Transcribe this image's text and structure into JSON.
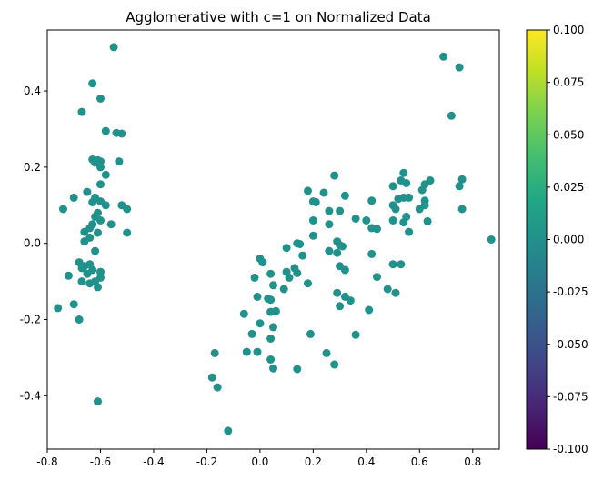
{
  "chart_data": {
    "type": "scatter",
    "title": "Agglomerative with c=1 on Normalized Data",
    "xlabel": "",
    "ylabel": "",
    "xlim": [
      -0.8,
      0.9
    ],
    "ylim": [
      -0.54,
      0.56
    ],
    "x_ticks": [
      "-0.8",
      "-0.6",
      "-0.4",
      "-0.2",
      "0.0",
      "0.2",
      "0.4",
      "0.6",
      "0.8"
    ],
    "y_ticks": [
      "-0.4",
      "-0.2",
      "0.0",
      "0.2",
      "0.4"
    ],
    "point_color": "#21918c",
    "grid": false,
    "colorbar": {
      "cmap": "viridis",
      "range": [
        -0.1,
        0.1
      ],
      "ticks": [
        "-0.100",
        "-0.075",
        "-0.050",
        "-0.025",
        "0.000",
        "0.025",
        "0.050",
        "0.075",
        "0.100"
      ]
    },
    "points": [
      [
        -0.55,
        0.515
      ],
      [
        -0.63,
        0.42
      ],
      [
        -0.6,
        0.38
      ],
      [
        -0.67,
        0.345
      ],
      [
        -0.58,
        0.295
      ],
      [
        -0.54,
        0.29
      ],
      [
        -0.52,
        0.288
      ],
      [
        -0.63,
        0.22
      ],
      [
        -0.61,
        0.218
      ],
      [
        -0.6,
        0.215
      ],
      [
        -0.62,
        0.212
      ],
      [
        -0.53,
        0.215
      ],
      [
        -0.6,
        0.2
      ],
      [
        -0.58,
        0.18
      ],
      [
        -0.6,
        0.155
      ],
      [
        -0.65,
        0.135
      ],
      [
        -0.7,
        0.12
      ],
      [
        -0.62,
        0.12
      ],
      [
        -0.6,
        0.11
      ],
      [
        -0.63,
        0.108
      ],
      [
        -0.58,
        0.1
      ],
      [
        -0.52,
        0.1
      ],
      [
        -0.5,
        0.09
      ],
      [
        -0.74,
        0.09
      ],
      [
        -0.61,
        0.08
      ],
      [
        -0.62,
        0.07
      ],
      [
        -0.6,
        0.06
      ],
      [
        -0.63,
        0.05
      ],
      [
        -0.56,
        0.05
      ],
      [
        -0.64,
        0.04
      ],
      [
        -0.66,
        0.03
      ],
      [
        -0.61,
        0.028
      ],
      [
        -0.5,
        0.028
      ],
      [
        -0.64,
        0.015
      ],
      [
        -0.66,
        0.005
      ],
      [
        -0.62,
        -0.02
      ],
      [
        -0.68,
        -0.05
      ],
      [
        -0.64,
        -0.055
      ],
      [
        -0.66,
        -0.06
      ],
      [
        -0.67,
        -0.065
      ],
      [
        -0.63,
        -0.07
      ],
      [
        -0.6,
        -0.075
      ],
      [
        -0.65,
        -0.08
      ],
      [
        -0.72,
        -0.085
      ],
      [
        -0.6,
        -0.09
      ],
      [
        -0.62,
        -0.1
      ],
      [
        -0.67,
        -0.1
      ],
      [
        -0.64,
        -0.105
      ],
      [
        -0.61,
        -0.115
      ],
      [
        -0.7,
        -0.16
      ],
      [
        -0.76,
        -0.17
      ],
      [
        -0.68,
        -0.2
      ],
      [
        -0.61,
        -0.415
      ],
      [
        0.69,
        0.49
      ],
      [
        0.75,
        0.462
      ],
      [
        0.72,
        0.335
      ],
      [
        0.54,
        0.185
      ],
      [
        0.28,
        0.178
      ],
      [
        0.53,
        0.165
      ],
      [
        0.64,
        0.165
      ],
      [
        0.5,
        0.15
      ],
      [
        0.62,
        0.155
      ],
      [
        0.76,
        0.168
      ],
      [
        0.55,
        0.158
      ],
      [
        0.61,
        0.14
      ],
      [
        0.75,
        0.15
      ],
      [
        0.18,
        0.138
      ],
      [
        0.24,
        0.133
      ],
      [
        0.32,
        0.125
      ],
      [
        0.54,
        0.12
      ],
      [
        0.56,
        0.12
      ],
      [
        0.52,
        0.117
      ],
      [
        0.42,
        0.112
      ],
      [
        0.62,
        0.112
      ],
      [
        0.2,
        0.11
      ],
      [
        0.21,
        0.108
      ],
      [
        0.5,
        0.1
      ],
      [
        0.62,
        0.1
      ],
      [
        0.6,
        0.09
      ],
      [
        0.51,
        0.09
      ],
      [
        0.76,
        0.09
      ],
      [
        0.26,
        0.085
      ],
      [
        0.3,
        0.085
      ],
      [
        0.55,
        0.07
      ],
      [
        0.36,
        0.065
      ],
      [
        0.4,
        0.06
      ],
      [
        0.5,
        0.06
      ],
      [
        0.2,
        0.06
      ],
      [
        0.63,
        0.058
      ],
      [
        0.54,
        0.055
      ],
      [
        0.26,
        0.05
      ],
      [
        0.42,
        0.04
      ],
      [
        0.44,
        0.038
      ],
      [
        0.56,
        0.03
      ],
      [
        0.2,
        0.02
      ],
      [
        0.87,
        0.01
      ],
      [
        0.29,
        0.005
      ],
      [
        0.14,
        0.0
      ],
      [
        0.15,
        -0.002
      ],
      [
        0.3,
        -0.005
      ],
      [
        0.31,
        -0.008
      ],
      [
        0.1,
        -0.012
      ],
      [
        0.26,
        -0.02
      ],
      [
        0.29,
        -0.025
      ],
      [
        0.42,
        -0.028
      ],
      [
        0.16,
        -0.032
      ],
      [
        0.0,
        -0.04
      ],
      [
        0.01,
        -0.05
      ],
      [
        0.3,
        -0.06
      ],
      [
        0.32,
        -0.07
      ],
      [
        0.13,
        -0.065
      ],
      [
        0.1,
        -0.075
      ],
      [
        0.14,
        -0.078
      ],
      [
        0.04,
        -0.08
      ],
      [
        0.5,
        -0.055
      ],
      [
        0.53,
        -0.055
      ],
      [
        0.44,
        -0.088
      ],
      [
        0.11,
        -0.09
      ],
      [
        -0.02,
        -0.09
      ],
      [
        0.18,
        -0.105
      ],
      [
        0.05,
        -0.11
      ],
      [
        0.09,
        -0.12
      ],
      [
        0.48,
        -0.12
      ],
      [
        0.51,
        -0.13
      ],
      [
        0.29,
        -0.13
      ],
      [
        0.32,
        -0.14
      ],
      [
        -0.01,
        -0.14
      ],
      [
        0.03,
        -0.145
      ],
      [
        0.04,
        -0.148
      ],
      [
        0.34,
        -0.15
      ],
      [
        0.3,
        -0.165
      ],
      [
        0.41,
        -0.175
      ],
      [
        0.06,
        -0.178
      ],
      [
        0.04,
        -0.18
      ],
      [
        -0.06,
        -0.185
      ],
      [
        0.0,
        -0.21
      ],
      [
        0.05,
        -0.22
      ],
      [
        -0.03,
        -0.238
      ],
      [
        0.19,
        -0.238
      ],
      [
        0.04,
        -0.25
      ],
      [
        0.36,
        -0.24
      ],
      [
        -0.05,
        -0.285
      ],
      [
        -0.01,
        -0.285
      ],
      [
        0.25,
        -0.288
      ],
      [
        -0.17,
        -0.288
      ],
      [
        0.04,
        -0.305
      ],
      [
        0.28,
        -0.318
      ],
      [
        0.05,
        -0.328
      ],
      [
        0.14,
        -0.33
      ],
      [
        -0.18,
        -0.352
      ],
      [
        -0.16,
        -0.378
      ],
      [
        -0.12,
        -0.492
      ]
    ]
  }
}
